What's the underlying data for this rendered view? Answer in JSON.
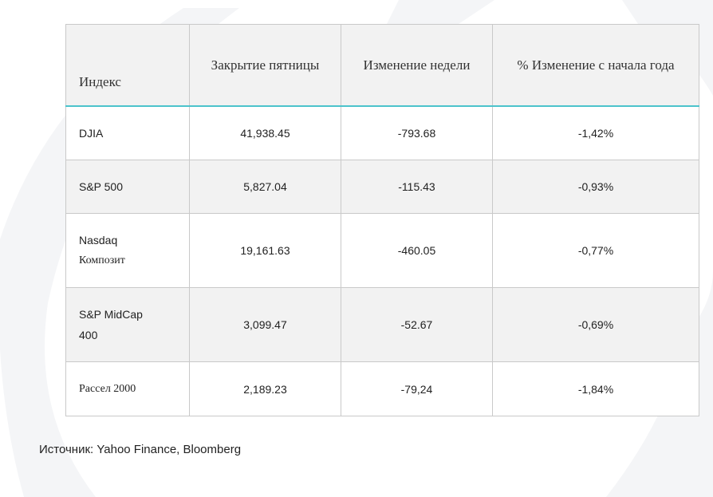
{
  "table": {
    "headers": [
      "Индекс",
      "Закрытие пятницы",
      "Изменение недели",
      "% Изменение с начала года"
    ],
    "rows": [
      {
        "name": "DJIA",
        "close": "41,938.45",
        "week_change": "-793.68",
        "ytd_change": "-1,42%"
      },
      {
        "name": "S&P 500",
        "close": "5,827.04",
        "week_change": "-115.43",
        "ytd_change": "-0,93%"
      },
      {
        "name_line1": "Nasdaq",
        "name_line2": "Композит",
        "close": "19,161.63",
        "week_change": "-460.05",
        "ytd_change": "-0,77%"
      },
      {
        "name_line1": "S&P MidCap",
        "name_line2": "400",
        "close": "3,099.47",
        "week_change": "-52.67",
        "ytd_change": "-0,69%"
      },
      {
        "name": "Рассел 2000",
        "close": "2,189.23",
        "week_change": "-79,24",
        "ytd_change": "-1,84%"
      }
    ]
  },
  "source": "Источник: Yahoo Finance, Bloomberg",
  "colors": {
    "header_background": "#f2f2f2",
    "header_underline": "#4cc3cc",
    "border": "#c9c9c9",
    "background_decoration": "#f4f5f7"
  }
}
